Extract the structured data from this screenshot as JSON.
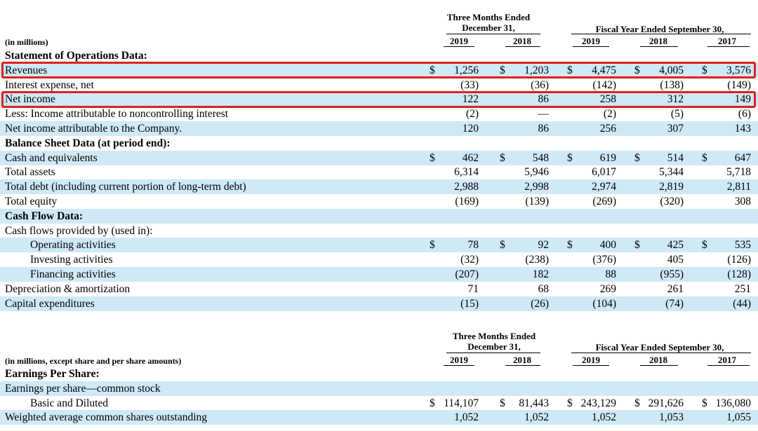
{
  "table1": {
    "units": "(in millions)",
    "group_three_months_line1": "Three Months Ended",
    "group_three_months_line2": "December 31,",
    "group_fiscal_year": "Fiscal Year Ended September 30,",
    "years": [
      "2019",
      "2018",
      "2019",
      "2018",
      "2017"
    ],
    "rows": [
      {
        "label": "Statement of Operations Data:",
        "bold": true,
        "values": []
      },
      {
        "label": "Revenues",
        "values": [
          [
            "$",
            "1,256"
          ],
          [
            "$",
            "1,203"
          ],
          [
            "$",
            "4,475"
          ],
          [
            "$",
            "4,005"
          ],
          [
            "$",
            "3,576"
          ]
        ]
      },
      {
        "label": "Interest expense, net",
        "values": [
          [
            "",
            "(33)"
          ],
          [
            "",
            "(36)"
          ],
          [
            "",
            "(142)"
          ],
          [
            "",
            "(138)"
          ],
          [
            "",
            "(149)"
          ]
        ]
      },
      {
        "label": "Net income",
        "values": [
          [
            "",
            "122"
          ],
          [
            "",
            "86"
          ],
          [
            "",
            "258"
          ],
          [
            "",
            "312"
          ],
          [
            "",
            "149"
          ]
        ]
      },
      {
        "label": "Less: Income attributable to noncontrolling interest",
        "values": [
          [
            "",
            "(2)"
          ],
          [
            "",
            "—"
          ],
          [
            "",
            "(2)"
          ],
          [
            "",
            "(5)"
          ],
          [
            "",
            "(6)"
          ]
        ]
      },
      {
        "label": "Net income attributable to the Company.",
        "values": [
          [
            "",
            "120"
          ],
          [
            "",
            "86"
          ],
          [
            "",
            "256"
          ],
          [
            "",
            "307"
          ],
          [
            "",
            "143"
          ]
        ]
      },
      {
        "label": "Balance Sheet Data (at period end):",
        "bold": true,
        "values": []
      },
      {
        "label": "Cash and equivalents",
        "values": [
          [
            "$",
            "462"
          ],
          [
            "$",
            "548"
          ],
          [
            "$",
            "619"
          ],
          [
            "$",
            "514"
          ],
          [
            "$",
            "647"
          ]
        ]
      },
      {
        "label": "Total assets",
        "values": [
          [
            "",
            "6,314"
          ],
          [
            "",
            "5,946"
          ],
          [
            "",
            "6,017"
          ],
          [
            "",
            "5,344"
          ],
          [
            "",
            "5,718"
          ]
        ]
      },
      {
        "label": "Total debt (including current portion of long-term debt)",
        "values": [
          [
            "",
            "2,988"
          ],
          [
            "",
            "2,998"
          ],
          [
            "",
            "2,974"
          ],
          [
            "",
            "2,819"
          ],
          [
            "",
            "2,811"
          ]
        ]
      },
      {
        "label": "Total equity",
        "values": [
          [
            "",
            "(169)"
          ],
          [
            "",
            "(139)"
          ],
          [
            "",
            "(269)"
          ],
          [
            "",
            "(320)"
          ],
          [
            "",
            "308"
          ]
        ]
      },
      {
        "label": "Cash Flow Data:",
        "bold": true,
        "values": []
      },
      {
        "label": "Cash flows provided by (used in):",
        "values": []
      },
      {
        "label": "Operating activities",
        "indent": true,
        "values": [
          [
            "$",
            "78"
          ],
          [
            "$",
            "92"
          ],
          [
            "$",
            "400"
          ],
          [
            "$",
            "425"
          ],
          [
            "$",
            "535"
          ]
        ]
      },
      {
        "label": "Investing activities",
        "indent": true,
        "values": [
          [
            "",
            "(32)"
          ],
          [
            "",
            "(238)"
          ],
          [
            "",
            "(376)"
          ],
          [
            "",
            "405"
          ],
          [
            "",
            "(126)"
          ]
        ]
      },
      {
        "label": "Financing activities",
        "indent": true,
        "values": [
          [
            "",
            "(207)"
          ],
          [
            "",
            "182"
          ],
          [
            "",
            "88"
          ],
          [
            "",
            "(955)"
          ],
          [
            "",
            "(128)"
          ]
        ]
      },
      {
        "label": "Depreciation & amortization",
        "values": [
          [
            "",
            "71"
          ],
          [
            "",
            "68"
          ],
          [
            "",
            "269"
          ],
          [
            "",
            "261"
          ],
          [
            "",
            "251"
          ]
        ]
      },
      {
        "label": "Capital expenditures",
        "values": [
          [
            "",
            "(15)"
          ],
          [
            "",
            "(26)"
          ],
          [
            "",
            "(104)"
          ],
          [
            "",
            "(74)"
          ],
          [
            "",
            "(44)"
          ]
        ]
      }
    ]
  },
  "table2": {
    "units": "(in millions, except share and per share amounts)",
    "group_three_months_line1": "Three Months Ended",
    "group_three_months_line2": "December 31,",
    "group_fiscal_year": "Fiscal Year Ended September 30,",
    "years": [
      "2019",
      "2018",
      "2019",
      "2018",
      "2017"
    ],
    "rows": [
      {
        "label": "Earnings Per Share:",
        "bold": true,
        "values": []
      },
      {
        "label": "Earnings per share—common stock",
        "values": []
      },
      {
        "label": "Basic and Diluted",
        "indent": true,
        "values": [
          [
            "$",
            "114,107"
          ],
          [
            "$",
            "81,443"
          ],
          [
            "$",
            "243,129"
          ],
          [
            "$",
            "291,626"
          ],
          [
            "$",
            "136,080"
          ]
        ]
      },
      {
        "label": "Weighted average common shares outstanding",
        "values": [
          [
            "",
            "1,052"
          ],
          [
            "",
            "1,052"
          ],
          [
            "",
            "1,052"
          ],
          [
            "",
            "1,053"
          ],
          [
            "",
            "1,055"
          ]
        ]
      }
    ]
  },
  "highlight_color": "#e0201c",
  "shade_color": "#cfe9f6"
}
